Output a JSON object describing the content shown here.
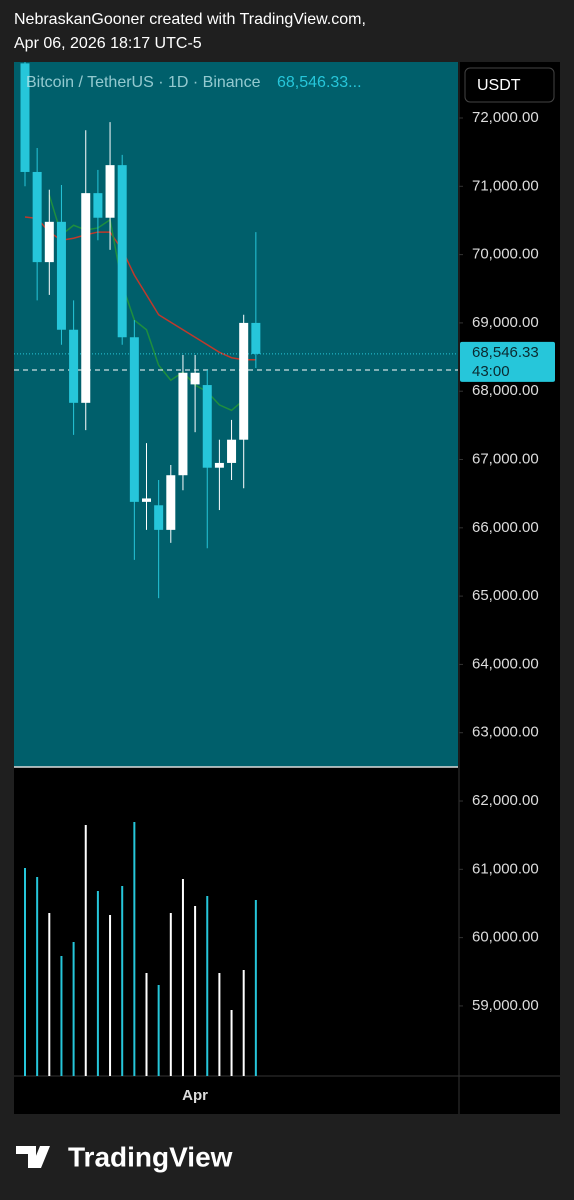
{
  "header": {
    "line1": "NebraskanGooner created with TradingView.com,",
    "line2": "Apr 06, 2026 18:17 UTC-5"
  },
  "chart_data": {
    "type": "candlestick",
    "title": "Bitcoin / TetherUS · 1D · Binance",
    "last_price_text": "68,546.33...",
    "currency": "USDT",
    "countdown": "43:00",
    "price_tag": "68,546.33",
    "up_color": "#ffffff",
    "down_color": "#26c6da",
    "background": "#005f6b",
    "categories": [
      null,
      null,
      null,
      null,
      null,
      null,
      null,
      null,
      null,
      null,
      null,
      null,
      null,
      null,
      "Apr",
      null,
      null,
      null,
      null,
      null
    ],
    "open": [
      72800,
      71210,
      69890,
      70480,
      68900,
      67830,
      70900,
      70540,
      71310,
      68790,
      66380,
      66330,
      65970,
      66770,
      68100,
      68090,
      66880,
      66950,
      67290,
      69000
    ],
    "high": [
      72820,
      71560,
      70950,
      71020,
      69330,
      71820,
      71240,
      71940,
      71460,
      69040,
      67240,
      66700,
      66920,
      68530,
      68530,
      68310,
      67290,
      67580,
      69120,
      70330
    ],
    "low": [
      71000,
      69330,
      69410,
      68680,
      67360,
      67430,
      70210,
      70070,
      68680,
      65530,
      65970,
      64970,
      65780,
      66550,
      67400,
      65700,
      66260,
      66700,
      66580,
      68340
    ],
    "close": [
      71210,
      69890,
      70480,
      68900,
      67830,
      70900,
      70540,
      71310,
      68790,
      66380,
      66430,
      65970,
      66770,
      68270,
      68270,
      66880,
      66950,
      67290,
      69000,
      68546.33
    ],
    "ma_lines": [
      {
        "color": "#c0392b",
        "values": [
          70550,
          70530,
          70330,
          70210,
          70240,
          70290,
          70330,
          70330,
          70070,
          69700,
          69410,
          69120,
          69010,
          68900,
          68790,
          68680,
          68570,
          68490,
          68460,
          68460
        ]
      },
      {
        "color": "#1e8e3e",
        "values": [
          null,
          null,
          70870,
          70290,
          70430,
          70360,
          70390,
          70510,
          69560,
          69040,
          68900,
          68380,
          68160,
          68280,
          68090,
          67990,
          67800,
          67720,
          67870,
          null
        ]
      }
    ],
    "crosshair": 68310,
    "volume": [
      208,
      199,
      163,
      120,
      134,
      251,
      185,
      161,
      190,
      254,
      103,
      91,
      163,
      197,
      170,
      180,
      103,
      66,
      106,
      176
    ],
    "volume_lim": [
      0,
      309
    ],
    "ylim": [
      57974,
      72820
    ],
    "yticks": [
      {
        "value": 72000,
        "label": "72,000.00"
      },
      {
        "value": 71000,
        "label": "71,000.00"
      },
      {
        "value": 70000,
        "label": "70,000.00"
      },
      {
        "value": 69000,
        "label": "69,000.00"
      },
      {
        "value": 68000,
        "label": "68,000.00"
      },
      {
        "value": 67000,
        "label": "67,000.00"
      },
      {
        "value": 66000,
        "label": "66,000.00"
      },
      {
        "value": 65000,
        "label": "65,000.00"
      },
      {
        "value": 64000,
        "label": "64,000.00"
      },
      {
        "value": 63000,
        "label": "63,000.00"
      },
      {
        "value": 62000,
        "label": "62,000.00"
      },
      {
        "value": 61000,
        "label": "61,000.00"
      },
      {
        "value": 60000,
        "label": "60,000.00"
      },
      {
        "value": 59000,
        "label": "59,000.00"
      }
    ]
  },
  "footer": {
    "logo": "TradingView"
  }
}
